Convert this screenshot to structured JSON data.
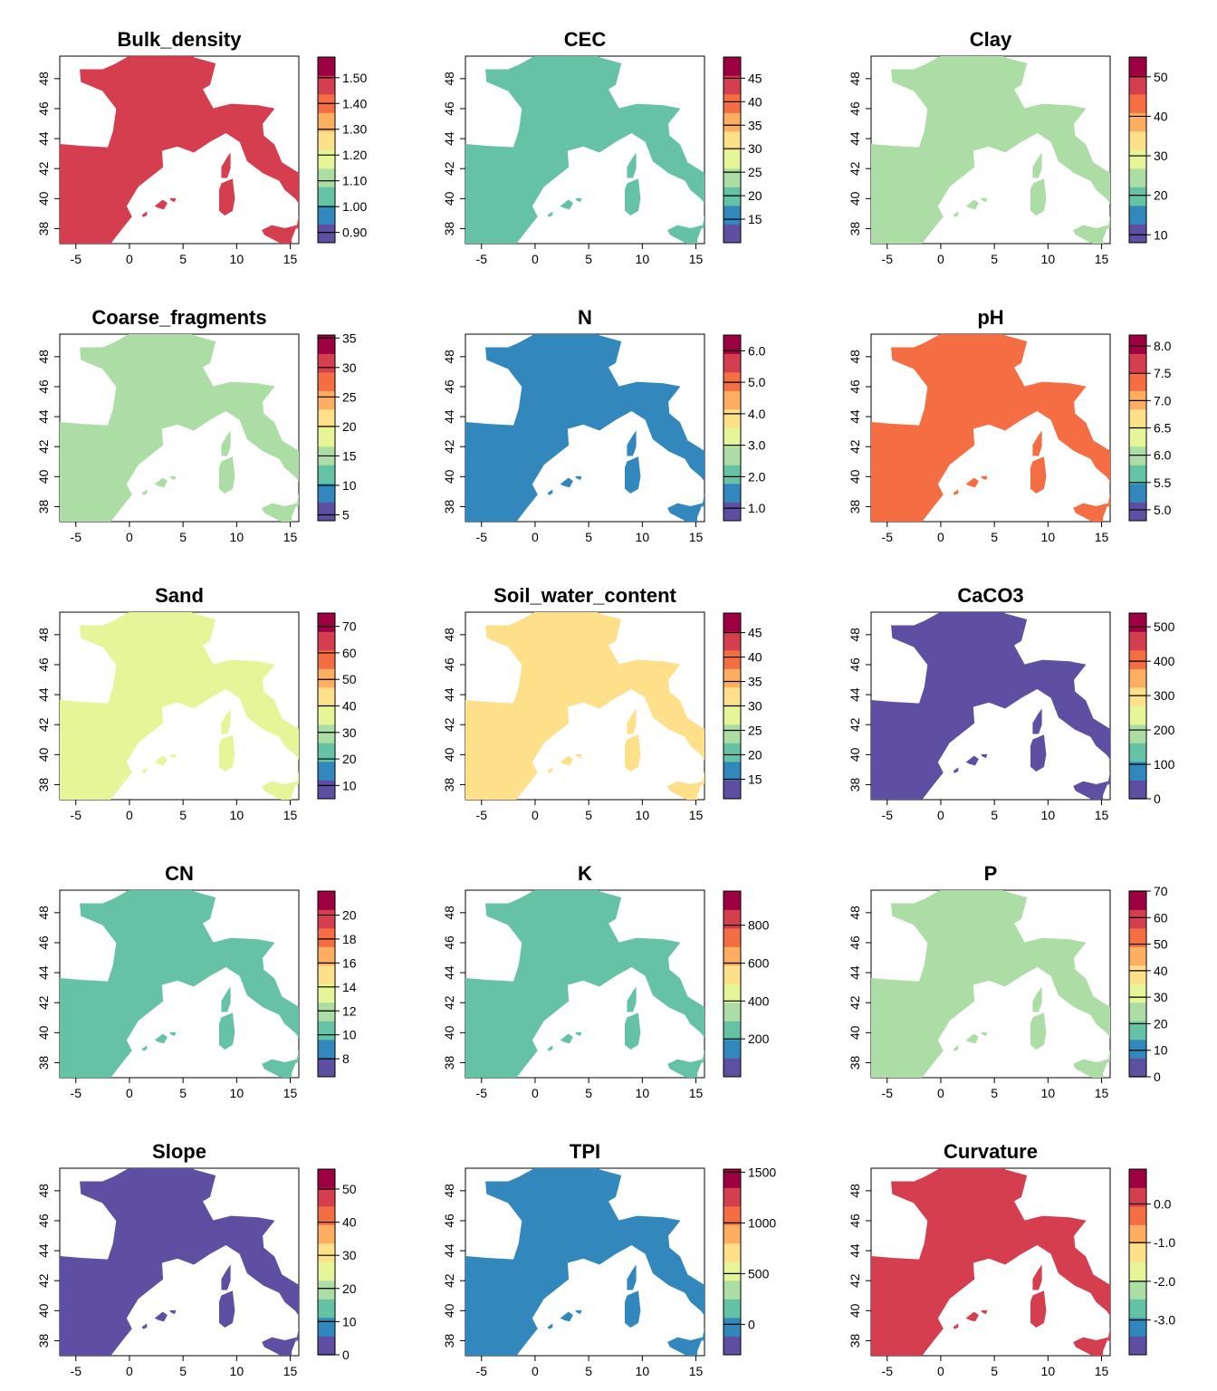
{
  "figure": {
    "palette": [
      "#5E4FA2",
      "#3288BD",
      "#66C2A5",
      "#ABDDA4",
      "#E6F598",
      "#FEE08B",
      "#FDAE61",
      "#F46D43",
      "#D53E4F",
      "#9E0142"
    ],
    "land_outline_lonlat": [
      [
        -9.0,
        43.0
      ],
      [
        -8.0,
        43.7
      ],
      [
        -4.5,
        43.5
      ],
      [
        -2.0,
        43.4
      ],
      [
        -1.5,
        44.5
      ],
      [
        -1.2,
        46.0
      ],
      [
        -2.5,
        47.2
      ],
      [
        -4.5,
        47.8
      ],
      [
        -4.6,
        48.6
      ],
      [
        -2.5,
        48.6
      ],
      [
        -1.5,
        48.9
      ],
      [
        0.0,
        49.5
      ],
      [
        1.2,
        50.0
      ],
      [
        2.5,
        51.0
      ],
      [
        4.0,
        50.3
      ],
      [
        6.0,
        49.4
      ],
      [
        8.0,
        49.0
      ],
      [
        7.5,
        47.6
      ],
      [
        6.8,
        47.3
      ],
      [
        7.8,
        46.0
      ],
      [
        9.5,
        46.3
      ],
      [
        12.0,
        46.2
      ],
      [
        13.5,
        46.0
      ],
      [
        12.4,
        45.0
      ],
      [
        12.5,
        44.2
      ],
      [
        13.5,
        43.6
      ],
      [
        14.2,
        42.4
      ],
      [
        16.0,
        41.6
      ],
      [
        17.5,
        40.7
      ],
      [
        18.5,
        40.2
      ],
      [
        17.0,
        39.4
      ],
      [
        16.5,
        38.5
      ],
      [
        15.6,
        38.0
      ],
      [
        16.0,
        39.5
      ],
      [
        15.5,
        40.0
      ],
      [
        14.5,
        40.6
      ],
      [
        14.0,
        41.2
      ],
      [
        12.5,
        41.7
      ],
      [
        11.0,
        42.5
      ],
      [
        10.3,
        43.8
      ],
      [
        9.0,
        44.4
      ],
      [
        7.5,
        43.8
      ],
      [
        6.0,
        43.1
      ],
      [
        4.5,
        43.5
      ],
      [
        3.0,
        43.2
      ],
      [
        3.1,
        42.1
      ],
      [
        1.5,
        41.2
      ],
      [
        0.8,
        40.8
      ],
      [
        -0.3,
        39.5
      ],
      [
        0.2,
        38.8
      ],
      [
        -0.7,
        38.0
      ],
      [
        -2.0,
        36.8
      ],
      [
        -4.5,
        36.6
      ],
      [
        -5.6,
        36.0
      ],
      [
        -6.3,
        36.8
      ],
      [
        -7.4,
        37.2
      ],
      [
        -8.9,
        37.0
      ],
      [
        -8.8,
        38.5
      ],
      [
        -9.4,
        39.0
      ],
      [
        -8.7,
        40.5
      ],
      [
        -8.9,
        42.5
      ]
    ],
    "islands_lonlat": [
      [
        [
          8.6,
          41.0
        ],
        [
          9.6,
          41.3
        ],
        [
          9.8,
          40.0
        ],
        [
          9.6,
          39.2
        ],
        [
          8.9,
          38.9
        ],
        [
          8.4,
          39.2
        ],
        [
          8.4,
          40.6
        ]
      ],
      [
        [
          8.6,
          41.4
        ],
        [
          9.1,
          41.4
        ],
        [
          9.4,
          42.0
        ],
        [
          9.4,
          43.0
        ],
        [
          9.1,
          42.7
        ],
        [
          8.6,
          42.1
        ]
      ],
      [
        [
          12.4,
          37.9
        ],
        [
          13.3,
          38.2
        ],
        [
          14.5,
          38.0
        ],
        [
          15.6,
          38.2
        ],
        [
          15.1,
          37.3
        ],
        [
          15.1,
          36.7
        ],
        [
          14.2,
          37.0
        ],
        [
          12.6,
          37.6
        ]
      ],
      [
        [
          2.4,
          39.5
        ],
        [
          3.1,
          39.9
        ],
        [
          3.5,
          39.7
        ],
        [
          3.2,
          39.3
        ],
        [
          2.7,
          39.4
        ]
      ],
      [
        [
          3.8,
          40.0
        ],
        [
          4.3,
          40.0
        ],
        [
          4.2,
          39.8
        ],
        [
          3.9,
          39.9
        ]
      ],
      [
        [
          1.2,
          38.9
        ],
        [
          1.6,
          39.1
        ],
        [
          1.6,
          38.9
        ],
        [
          1.3,
          38.8
        ]
      ]
    ],
    "x_ticks": [
      "-5",
      "0",
      "5",
      "10",
      "15"
    ],
    "y_ticks": [
      "38",
      "40",
      "42",
      "44",
      "46",
      "48"
    ]
  },
  "chart_data": [
    {
      "type": "heatmap",
      "title": "Bulk_density",
      "legend_ticks": [
        "0.90",
        "1.00",
        "1.10",
        "1.20",
        "1.30",
        "1.40",
        "1.50"
      ],
      "legend_range": [
        0.86,
        1.58
      ],
      "legend_tick_values": [
        0.9,
        1.0,
        1.1,
        1.2,
        1.3,
        1.4,
        1.5
      ],
      "xlim": [
        -6.5,
        15.8
      ],
      "ylim": [
        37.0,
        49.5
      ],
      "base_color": "#D53E4F"
    },
    {
      "type": "heatmap",
      "title": "CEC",
      "legend_ticks": [
        "15",
        "20",
        "25",
        "30",
        "35",
        "40",
        "45"
      ],
      "legend_range": [
        10,
        49.5
      ],
      "legend_tick_values": [
        15,
        20,
        25,
        30,
        35,
        40,
        45
      ],
      "xlim": [
        -6.5,
        15.8
      ],
      "ylim": [
        37.0,
        49.5
      ],
      "base_color": "#66C2A5"
    },
    {
      "type": "heatmap",
      "title": "Clay",
      "legend_ticks": [
        "10",
        "20",
        "30",
        "40",
        "50"
      ],
      "legend_range": [
        8,
        55
      ],
      "legend_tick_values": [
        10,
        20,
        30,
        40,
        50
      ],
      "xlim": [
        -6.5,
        15.8
      ],
      "ylim": [
        37.0,
        49.5
      ],
      "base_color": "#ABDDA4"
    },
    {
      "type": "heatmap",
      "title": "Coarse_fragments",
      "legend_ticks": [
        "5",
        "10",
        "15",
        "20",
        "25",
        "30",
        "35"
      ],
      "legend_range": [
        4,
        35.5
      ],
      "legend_tick_values": [
        5,
        10,
        15,
        20,
        25,
        30,
        35
      ],
      "xlim": [
        -6.5,
        15.8
      ],
      "ylim": [
        37.0,
        49.5
      ],
      "base_color": "#ABDDA4"
    },
    {
      "type": "heatmap",
      "title": "N",
      "legend_ticks": [
        "1.0",
        "2.0",
        "3.0",
        "4.0",
        "5.0",
        "6.0"
      ],
      "legend_range": [
        0.6,
        6.5
      ],
      "legend_tick_values": [
        1,
        2,
        3,
        4,
        5,
        6
      ],
      "xlim": [
        -6.5,
        15.8
      ],
      "ylim": [
        37.0,
        49.5
      ],
      "base_color": "#3288BD"
    },
    {
      "type": "heatmap",
      "title": "pH",
      "legend_ticks": [
        "5.0",
        "5.5",
        "6.0",
        "6.5",
        "7.0",
        "7.5",
        "8.0"
      ],
      "legend_range": [
        4.8,
        8.2
      ],
      "legend_tick_values": [
        5,
        5.5,
        6,
        6.5,
        7,
        7.5,
        8
      ],
      "xlim": [
        -6.5,
        15.8
      ],
      "ylim": [
        37.0,
        49.5
      ],
      "base_color": "#F46D43"
    },
    {
      "type": "heatmap",
      "title": "Sand",
      "legend_ticks": [
        "10",
        "20",
        "30",
        "40",
        "50",
        "60",
        "70"
      ],
      "legend_range": [
        5,
        75
      ],
      "legend_tick_values": [
        10,
        20,
        30,
        40,
        50,
        60,
        70
      ],
      "xlim": [
        -6.5,
        15.8
      ],
      "ylim": [
        37.0,
        49.5
      ],
      "base_color": "#E6F598"
    },
    {
      "type": "heatmap",
      "title": "Soil_water_content",
      "legend_ticks": [
        "15",
        "20",
        "25",
        "30",
        "35",
        "40",
        "45"
      ],
      "legend_range": [
        11,
        49
      ],
      "legend_tick_values": [
        15,
        20,
        25,
        30,
        35,
        40,
        45
      ],
      "xlim": [
        -6.5,
        15.8
      ],
      "ylim": [
        37.0,
        49.5
      ],
      "base_color": "#FEE08B"
    },
    {
      "type": "heatmap",
      "title": "CaCO3",
      "legend_ticks": [
        "0",
        "100",
        "200",
        "300",
        "400",
        "500"
      ],
      "legend_range": [
        0,
        540
      ],
      "legend_tick_values": [
        0,
        100,
        200,
        300,
        400,
        500
      ],
      "xlim": [
        -6.5,
        15.8
      ],
      "ylim": [
        37.0,
        49.5
      ],
      "base_color": "#5E4FA2"
    },
    {
      "type": "heatmap",
      "title": "CN",
      "legend_ticks": [
        "8",
        "10",
        "12",
        "14",
        "16",
        "18",
        "20"
      ],
      "legend_range": [
        6.5,
        22
      ],
      "legend_tick_values": [
        8,
        10,
        12,
        14,
        16,
        18,
        20
      ],
      "xlim": [
        -6.5,
        15.8
      ],
      "ylim": [
        37.0,
        49.5
      ],
      "base_color": "#66C2A5"
    },
    {
      "type": "heatmap",
      "title": "K",
      "legend_ticks": [
        "200",
        "400",
        "600",
        "800"
      ],
      "legend_range": [
        0,
        980
      ],
      "legend_tick_values": [
        200,
        400,
        600,
        800
      ],
      "xlim": [
        -6.5,
        15.8
      ],
      "ylim": [
        37.0,
        49.5
      ],
      "base_color": "#66C2A5"
    },
    {
      "type": "heatmap",
      "title": "P",
      "legend_ticks": [
        "0",
        "10",
        "20",
        "30",
        "40",
        "50",
        "60",
        "70"
      ],
      "legend_range": [
        0,
        70
      ],
      "legend_tick_values": [
        0,
        10,
        20,
        30,
        40,
        50,
        60,
        70
      ],
      "xlim": [
        -6.5,
        15.8
      ],
      "ylim": [
        37.0,
        49.5
      ],
      "base_color": "#ABDDA4"
    },
    {
      "type": "heatmap",
      "title": "Slope",
      "legend_ticks": [
        "0",
        "10",
        "20",
        "30",
        "40",
        "50"
      ],
      "legend_range": [
        0,
        56
      ],
      "legend_tick_values": [
        0,
        10,
        20,
        30,
        40,
        50
      ],
      "xlim": [
        -6.5,
        15.8
      ],
      "ylim": [
        37.0,
        49.5
      ],
      "base_color": "#5E4FA2"
    },
    {
      "type": "heatmap",
      "title": "TPI",
      "legend_ticks": [
        "0",
        "500",
        "1000",
        "1500"
      ],
      "legend_range": [
        -300,
        1530
      ],
      "legend_tick_values": [
        0,
        500,
        1000,
        1500
      ],
      "xlim": [
        -6.5,
        15.8
      ],
      "ylim": [
        37.0,
        49.5
      ],
      "base_color": "#3288BD"
    },
    {
      "type": "heatmap",
      "title": "Curvature",
      "legend_ticks": [
        "-3.0",
        "-2.0",
        "-1.0",
        "0.0"
      ],
      "legend_range": [
        -3.9,
        0.9
      ],
      "legend_tick_values": [
        -3,
        -2,
        -1,
        0
      ],
      "xlim": [
        -6.5,
        15.8
      ],
      "ylim": [
        37.0,
        49.5
      ],
      "base_color": "#D53E4F"
    }
  ]
}
